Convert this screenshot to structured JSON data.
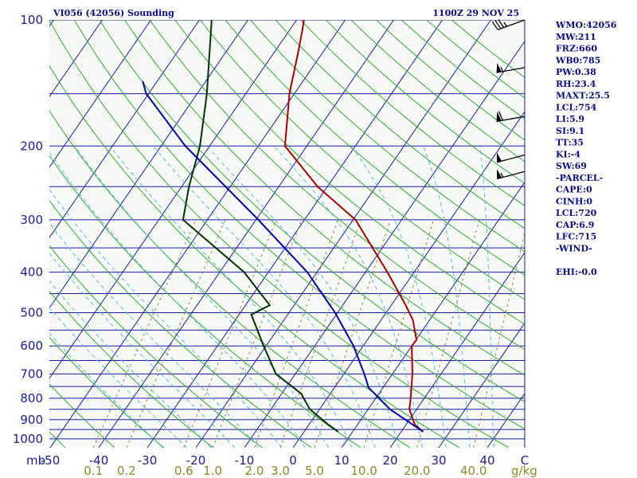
{
  "header": {
    "station": "VI056 (42056) Sounding",
    "time": "1100Z 29 NOV 25"
  },
  "indices": [
    "WMO:42056",
    "MW:211",
    "FRZ:660",
    "WB0:785",
    "PW:0.38",
    "RH:23.4",
    "MAXT:25.5",
    "LCL:754",
    "LI:5.9",
    "SI:9.1",
    "TT:35",
    "KI:-4",
    "SW:69",
    "-PARCEL-",
    "CAPE:0",
    "CINH:0",
    "LCL:720",
    "CAP:6.9",
    "LFC:715",
    "-WIND-",
    "",
    "EHI:-0.0"
  ],
  "axis": {
    "pressure_unit": "mb",
    "mixing_unit": "g/kg"
  },
  "colors": {
    "background": "#f6f9f5",
    "isobar": "#1a1aa0",
    "isotherm": "#1a1aa0",
    "dry_adiabat": "#33aa33",
    "moist_adiabat": "#55bbdd",
    "mixing_ratio": "#8a8a33",
    "temperature": "#aa0000",
    "dewpoint": "#003300",
    "parcel": "#0000aa",
    "wind": "#000000"
  },
  "chart_data": {
    "type": "line",
    "diagram": "skew-t log-p",
    "pressure_levels": [
      100,
      150,
      200,
      250,
      300,
      350,
      400,
      450,
      500,
      550,
      600,
      650,
      700,
      750,
      800,
      850,
      900,
      950,
      1000
    ],
    "pressure_tick_labels": [
      "100",
      "200",
      "300",
      "400",
      "500",
      "600",
      "700",
      "800",
      "900",
      "1000"
    ],
    "temperature_tick_labels": [
      "-50",
      "-40",
      "-30",
      "-20",
      "-10",
      "0",
      "10",
      "20",
      "30",
      "40",
      "C"
    ],
    "mixing_ratio_labels": [
      "0.1",
      "0.2",
      "0.6",
      "1.0",
      "2.0",
      "3.0",
      "5.0",
      "10.0",
      "20.0",
      "40.0"
    ],
    "series": [
      {
        "key": "temperature",
        "points": [
          [
            961,
            24.5
          ],
          [
            925,
            21.8
          ],
          [
            850,
            18.5
          ],
          [
            800,
            17.2
          ],
          [
            700,
            14.1
          ],
          [
            600,
            10.0
          ],
          [
            580,
            10.1
          ],
          [
            520,
            6.5
          ],
          [
            480,
            3.0
          ],
          [
            400,
            -5.5
          ],
          [
            300,
            -19.5
          ],
          [
            250,
            -32.0
          ],
          [
            200,
            -44.5
          ],
          [
            150,
            -51.0
          ],
          [
            120,
            -55.0
          ],
          [
            105,
            -57.5
          ],
          [
            100,
            -58.5
          ]
        ]
      },
      {
        "key": "dewpoint",
        "points": [
          [
            961,
            7.0
          ],
          [
            925,
            4.0
          ],
          [
            850,
            -2.0
          ],
          [
            780,
            -6.0
          ],
          [
            700,
            -14.0
          ],
          [
            600,
            -20.5
          ],
          [
            505,
            -27.5
          ],
          [
            480,
            -25.0
          ],
          [
            400,
            -35.0
          ],
          [
            300,
            -55.0
          ],
          [
            250,
            -58.5
          ],
          [
            200,
            -62.0
          ],
          [
            150,
            -68.0
          ],
          [
            100,
            -77.5
          ]
        ]
      },
      {
        "key": "parcel",
        "points": [
          [
            961,
            24.5
          ],
          [
            850,
            14.5
          ],
          [
            754,
            7.0
          ],
          [
            700,
            4.2
          ],
          [
            600,
            -2.0
          ],
          [
            500,
            -10.5
          ],
          [
            400,
            -22.0
          ],
          [
            300,
            -39.5
          ],
          [
            200,
            -65.0
          ],
          [
            150,
            -80.5
          ],
          [
            140,
            -83.0
          ]
        ]
      }
    ],
    "wind_barbs": [
      {
        "pressure": 100,
        "speed_kt": 35,
        "direction_deg": 250
      },
      {
        "pressure": 130,
        "speed_kt": 55,
        "direction_deg": 260
      },
      {
        "pressure": 170,
        "speed_kt": 60,
        "direction_deg": 260
      },
      {
        "pressure": 210,
        "speed_kt": 50,
        "direction_deg": 255
      },
      {
        "pressure": 230,
        "speed_kt": 55,
        "direction_deg": 255
      }
    ]
  }
}
